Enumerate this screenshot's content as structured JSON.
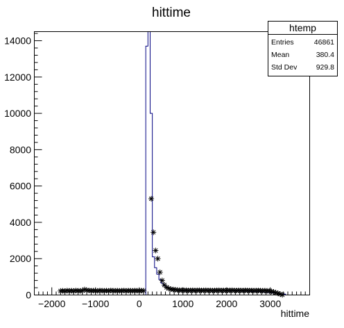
{
  "chart_data": {
    "type": "histogram",
    "title": "hittime",
    "xlabel": "hittime",
    "ylabel": "",
    "xlim": [
      -2400,
      3900
    ],
    "ylim": [
      0,
      14500
    ],
    "xticks": [
      -2000,
      -1000,
      0,
      1000,
      2000,
      3000
    ],
    "xtick_labels": [
      "−2000",
      "−1000",
      "0",
      "1000",
      "2000",
      "3000"
    ],
    "yticks": [
      0,
      2000,
      4000,
      6000,
      8000,
      10000,
      12000,
      14000
    ],
    "ytick_labels": [
      "0",
      "2000",
      "4000",
      "6000",
      "8000",
      "10000",
      "12000",
      "14000"
    ],
    "colors": {
      "histogram_line": "#000080",
      "markers": "#000000",
      "frame": "#000000"
    },
    "histogram": {
      "bin_width": 50,
      "first_bin_low": 150,
      "values": [
        13700,
        14500,
        10000,
        2100,
        1500,
        1150,
        850,
        650,
        520,
        430,
        380,
        340,
        310,
        290,
        275,
        265
      ],
      "tail_end": 3350,
      "tail_level_start": 260,
      "tail_level_end": 50
    },
    "marker_series": {
      "marker": "asterisk",
      "x": [
        -1800,
        -1750,
        -1700,
        -1650,
        -1600,
        -1550,
        -1500,
        -1450,
        -1400,
        -1350,
        -1300,
        -1250,
        -1200,
        -1150,
        -1100,
        -1050,
        -1000,
        -950,
        -900,
        -850,
        -800,
        -750,
        -700,
        -650,
        -600,
        -550,
        -500,
        -450,
        -400,
        -350,
        -300,
        -250,
        -200,
        -150,
        -100,
        -50,
        0,
        50,
        100,
        275,
        325,
        375,
        425,
        475,
        525,
        575,
        625,
        675,
        725,
        775,
        825,
        875,
        925,
        975,
        1025,
        1075,
        1125,
        1175,
        1225,
        1275,
        1325,
        1375,
        1425,
        1475,
        1525,
        1575,
        1625,
        1675,
        1725,
        1775,
        1825,
        1875,
        1925,
        1975,
        2025,
        2075,
        2125,
        2175,
        2225,
        2275,
        2325,
        2375,
        2425,
        2475,
        2525,
        2575,
        2625,
        2675,
        2725,
        2775,
        2825,
        2875,
        2925,
        2975,
        3025,
        3075,
        3125,
        3175,
        3225,
        3275
      ],
      "y": [
        220,
        230,
        215,
        240,
        225,
        235,
        220,
        245,
        230,
        225,
        240,
        300,
        260,
        250,
        235,
        240,
        230,
        225,
        245,
        235,
        230,
        240,
        225,
        250,
        235,
        230,
        240,
        225,
        235,
        245,
        230,
        240,
        235,
        230,
        240,
        235,
        230,
        240,
        235,
        5300,
        3450,
        2450,
        2000,
        1250,
        800,
        550,
        420,
        360,
        320,
        300,
        290,
        270,
        265,
        260,
        255,
        260,
        250,
        255,
        260,
        250,
        255,
        260,
        250,
        255,
        260,
        250,
        255,
        245,
        250,
        255,
        260,
        250,
        255,
        245,
        250,
        255,
        260,
        250,
        245,
        255,
        250,
        245,
        255,
        250,
        245,
        250,
        240,
        245,
        250,
        240,
        235,
        240,
        230,
        220,
        200,
        170,
        130,
        90,
        50,
        10
      ]
    }
  },
  "stats_box": {
    "title": "htemp",
    "rows": [
      {
        "label": "Entries",
        "value": "46861"
      },
      {
        "label": "Mean",
        "value": "380.4"
      },
      {
        "label": "Std Dev",
        "value": "929.8"
      }
    ]
  }
}
